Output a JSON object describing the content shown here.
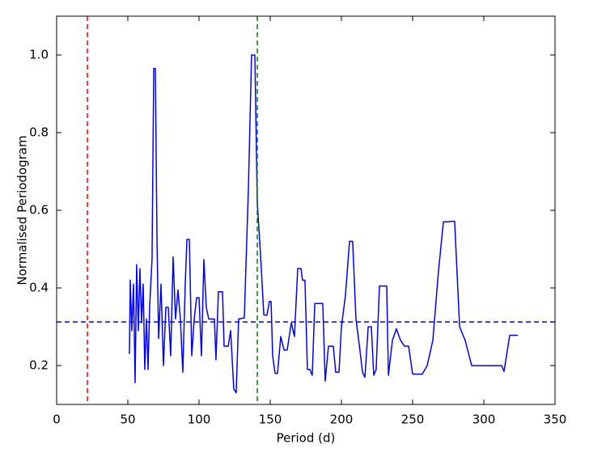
{
  "chart_data": {
    "type": "line",
    "xlabel": "Period (d)",
    "ylabel": "Normalised Periodogram",
    "xlim": [
      0,
      350
    ],
    "ylim": [
      0.1,
      1.1
    ],
    "xticks": [
      0,
      50,
      100,
      150,
      200,
      250,
      300,
      350
    ],
    "yticks": [
      0.2,
      0.4,
      0.6,
      0.8,
      {
        "value": 1.0,
        "label": "1.0"
      }
    ],
    "grid": false,
    "series": [
      {
        "color": "#0000ff",
        "x": [
          51.1,
          51.7,
          52.8,
          54.0,
          55.1,
          56.2,
          57.4,
          58.5,
          59.7,
          60.8,
          61.9,
          63.1,
          64.2,
          65.3,
          67.0,
          68.2,
          69.3,
          70.5,
          71.6,
          73.3,
          75.0,
          76.7,
          78.4,
          80.1,
          81.8,
          83.5,
          85.2,
          86.9,
          88.6,
          90.3,
          91.5,
          93.2,
          94.9,
          96.6,
          98.3,
          100.0,
          101.7,
          103.4,
          105.1,
          106.8,
          109.1,
          110.8,
          111.9,
          113.6,
          116.5,
          117.6,
          120.5,
          122.2,
          124.4,
          126.1,
          127.8,
          131.8,
          134.7,
          136.9,
          139.2,
          140.9,
          142.6,
          143.8,
          145.5,
          147.7,
          149.4,
          150.6,
          151.7,
          153.4,
          155.1,
          157.4,
          159.7,
          161.9,
          164.8,
          167.0,
          169.3,
          171.6,
          172.7,
          174.4,
          176.1,
          177.8,
          179.5,
          181.3,
          186.9,
          188.6,
          190.9,
          194.3,
          196.0,
          198.3,
          200.0,
          202.8,
          205.7,
          207.9,
          210.2,
          212.5,
          214.8,
          216.5,
          218.8,
          221.0,
          222.7,
          224.4,
          226.7,
          231.8,
          233.0,
          235.8,
          238.6,
          241.5,
          244.3,
          247.2,
          250.0,
          256.8,
          260.2,
          264.2,
          268.2,
          271.6,
          279.5,
          283.0,
          286.9,
          291.5,
          312.5,
          314.2,
          318.2,
          323.9
        ],
        "values": [
          0.23,
          0.42,
          0.29,
          0.41,
          0.156,
          0.46,
          0.29,
          0.45,
          0.31,
          0.41,
          0.19,
          0.32,
          0.19,
          0.35,
          0.475,
          0.965,
          0.965,
          0.52,
          0.27,
          0.41,
          0.2,
          0.35,
          0.35,
          0.225,
          0.48,
          0.32,
          0.395,
          0.32,
          0.183,
          0.41,
          0.525,
          0.525,
          0.225,
          0.32,
          0.375,
          0.375,
          0.225,
          0.473,
          0.35,
          0.32,
          0.32,
          0.32,
          0.215,
          0.39,
          0.39,
          0.25,
          0.25,
          0.29,
          0.14,
          0.13,
          0.32,
          0.323,
          0.66,
          1.0,
          1.0,
          0.62,
          0.52,
          0.445,
          0.33,
          0.33,
          0.365,
          0.365,
          0.225,
          0.18,
          0.18,
          0.275,
          0.24,
          0.24,
          0.31,
          0.275,
          0.45,
          0.45,
          0.42,
          0.42,
          0.19,
          0.19,
          0.175,
          0.36,
          0.36,
          0.16,
          0.25,
          0.25,
          0.183,
          0.183,
          0.3,
          0.38,
          0.52,
          0.52,
          0.32,
          0.255,
          0.183,
          0.17,
          0.3,
          0.3,
          0.175,
          0.19,
          0.405,
          0.405,
          0.175,
          0.265,
          0.295,
          0.265,
          0.25,
          0.25,
          0.178,
          0.178,
          0.2,
          0.265,
          0.445,
          0.57,
          0.572,
          0.3,
          0.265,
          0.2,
          0.2,
          0.185,
          0.278,
          0.278
        ]
      }
    ],
    "reference_lines": [
      {
        "axis": "x",
        "value": 21.6,
        "color": "#ff0000"
      },
      {
        "axis": "x",
        "value": 140.9,
        "color": "#008000"
      },
      {
        "axis": "y",
        "value": 0.3125,
        "color": "#0000ff"
      }
    ]
  }
}
